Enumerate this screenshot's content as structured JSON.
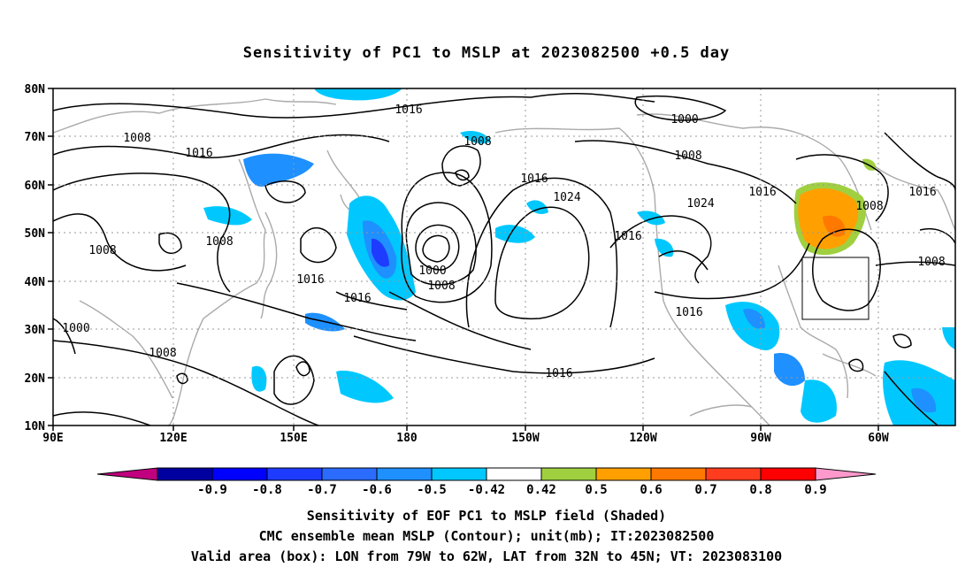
{
  "title": "Sensitivity of PC1 to MSLP at 2023082500 +0.5 day",
  "map": {
    "lat_ticks": [
      "80N",
      "70N",
      "60N",
      "50N",
      "40N",
      "30N",
      "20N",
      "10N"
    ],
    "lon_ticks": [
      "90E",
      "120E",
      "150E",
      "180",
      "150W",
      "120W",
      "90W",
      "60W"
    ],
    "contour_labels": [
      "1016",
      "1008",
      "1016",
      "1008",
      "1000",
      "1008",
      "1008",
      "1024",
      "1024",
      "1016",
      "1016",
      "1008",
      "1016",
      "1016",
      "1000",
      "1008",
      "1016",
      "1016",
      "1008",
      "1000",
      "1008",
      "1016",
      "1016",
      "1008"
    ],
    "valid_box": {
      "lon_from": "79W",
      "lon_to": "62W",
      "lat_from": "32N",
      "lat_to": "45N"
    },
    "colors": {
      "land": "#aaaaaa",
      "contour": "#000000",
      "grid": "#999999"
    }
  },
  "colorbar": {
    "labels": [
      "-0.9",
      "-0.8",
      "-0.7",
      "-0.6",
      "-0.5",
      "-0.42",
      "0.42",
      "0.5",
      "0.6",
      "0.7",
      "0.8",
      "0.9"
    ],
    "colors": [
      "#0000a0",
      "#0000ff",
      "#1e3cff",
      "#2b6cff",
      "#1e90ff",
      "#00c8ff",
      "#ffffff",
      "#a0d040",
      "#ffa000",
      "#ff7800",
      "#ff3c1e",
      "#ff0000"
    ],
    "low_end_color": "#c0007e",
    "high_end_color": "#ff99cc"
  },
  "captions": {
    "line1": "Sensitivity of EOF PC1 to MSLP field (Shaded)",
    "line2": "CMC ensemble mean MSLP (Contour); unit(mb); IT:2023082500",
    "line3": "Valid area (box): LON from 79W to 62W, LAT from 32N to 45N; VT: 2023083100"
  }
}
